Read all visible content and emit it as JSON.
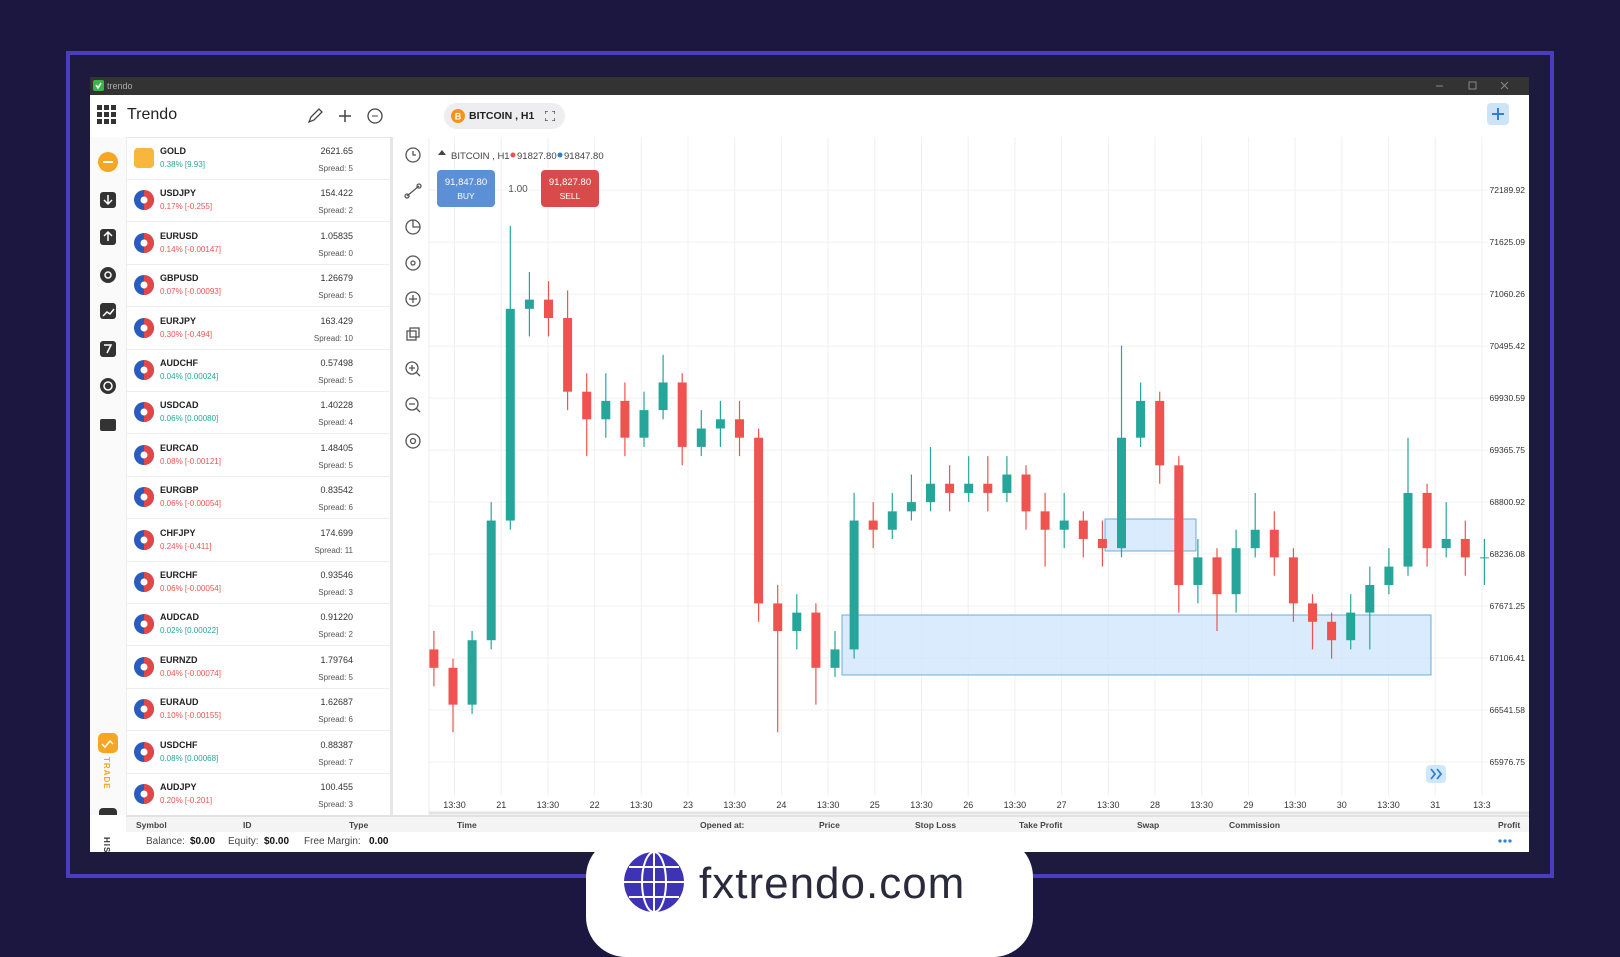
{
  "window": {
    "title": "trendo"
  },
  "header": {
    "app_name": "Trendo",
    "tab": "BITCOIN , H1"
  },
  "sidebar": {
    "trade": "TRADE",
    "history": "HISTORY"
  },
  "watchlist": [
    {
      "symbol": "GOLD",
      "price": "2621.65",
      "change": "0.38% [9.93]",
      "spread": "Spread: 5",
      "direction": "up"
    },
    {
      "symbol": "USDJPY",
      "price": "154.422",
      "change": "0.17% [-0.255]",
      "spread": "Spread: 2",
      "direction": "down"
    },
    {
      "symbol": "EURUSD",
      "price": "1.05835",
      "change": "0.14% [-0.00147]",
      "spread": "Spread: 0",
      "direction": "down"
    },
    {
      "symbol": "GBPUSD",
      "price": "1.26679",
      "change": "0.07% [-0.00093]",
      "spread": "Spread: 5",
      "direction": "down"
    },
    {
      "symbol": "EURJPY",
      "price": "163.429",
      "change": "0.30% [-0.494]",
      "spread": "Spread: 10",
      "direction": "down"
    },
    {
      "symbol": "AUDCHF",
      "price": "0.57498",
      "change": "0.04% [0.00024]",
      "spread": "Spread: 5",
      "direction": "up"
    },
    {
      "symbol": "USDCAD",
      "price": "1.40228",
      "change": "0.06% [0.00080]",
      "spread": "Spread: 4",
      "direction": "up"
    },
    {
      "symbol": "EURCAD",
      "price": "1.48405",
      "change": "0.08% [-0.00121]",
      "spread": "Spread: 5",
      "direction": "down"
    },
    {
      "symbol": "EURGBP",
      "price": "0.83542",
      "change": "0.06% [-0.00054]",
      "spread": "Spread: 6",
      "direction": "down"
    },
    {
      "symbol": "CHFJPY",
      "price": "174.699",
      "change": "0.24% [-0.411]",
      "spread": "Spread: 11",
      "direction": "down"
    },
    {
      "symbol": "EURCHF",
      "price": "0.93546",
      "change": "0.06% [-0.00054]",
      "spread": "Spread: 3",
      "direction": "down"
    },
    {
      "symbol": "AUDCAD",
      "price": "0.91220",
      "change": "0.02% [0.00022]",
      "spread": "Spread: 2",
      "direction": "up"
    },
    {
      "symbol": "EURNZD",
      "price": "1.79764",
      "change": "0.04% [-0.00074]",
      "spread": "Spread: 5",
      "direction": "down"
    },
    {
      "symbol": "EURAUD",
      "price": "1.62687",
      "change": "0.10% [-0.00155]",
      "spread": "Spread: 6",
      "direction": "down"
    },
    {
      "symbol": "USDCHF",
      "price": "0.88387",
      "change": "0.08% [0.00068]",
      "spread": "Spread: 7",
      "direction": "up"
    },
    {
      "symbol": "AUDJPY",
      "price": "100.455",
      "change": "0.20% [-0.201]",
      "spread": "Spread: 3",
      "direction": "down"
    }
  ],
  "chart_data": {
    "type": "candlestick",
    "title": "BITCOIN , H1",
    "bid": "91827.80",
    "ask": "91847.80",
    "buy_price": "91,847.80",
    "buy_label": "BUY",
    "lot": "1.00",
    "sell_price": "91,827.80",
    "sell_label": "SELL",
    "x_labels": [
      "13:30",
      "21",
      "13:30",
      "22",
      "13:30",
      "23",
      "13:30",
      "24",
      "13:30",
      "25",
      "13:30",
      "26",
      "13:30",
      "27",
      "13:30",
      "28",
      "13:30",
      "29",
      "13:30",
      "30",
      "13:30",
      "31",
      "13:3"
    ],
    "open": [
      67200,
      67000,
      66600,
      67300,
      68600,
      70900,
      71000,
      70800,
      70000,
      69700,
      69900,
      69500,
      69800,
      70100,
      69400,
      69600,
      69700,
      69500,
      67700,
      67400,
      67600,
      67000,
      67200,
      68600,
      68500,
      68700,
      68800,
      69000,
      68900,
      69000,
      68900,
      69100,
      68700,
      68500,
      68600,
      68400,
      68300,
      69500,
      69900,
      69200,
      67900,
      68200,
      67800,
      68300,
      68500,
      68200,
      67700,
      67500,
      67300,
      67600,
      67900,
      68100,
      68900,
      68300,
      68400,
      68200
    ],
    "high": [
      67400,
      67100,
      67400,
      68800,
      71800,
      71300,
      71200,
      71100,
      70200,
      70200,
      70100,
      70000,
      70400,
      70200,
      69800,
      69900,
      69900,
      69600,
      67900,
      67800,
      67700,
      67400,
      68900,
      68800,
      68900,
      69100,
      69400,
      69200,
      69300,
      69300,
      69300,
      69200,
      68900,
      68900,
      68700,
      68600,
      70500,
      70100,
      70000,
      69300,
      68400,
      68300,
      68500,
      68900,
      68700,
      68300,
      67800,
      67600,
      67800,
      68100,
      68300,
      69500,
      69000,
      68800,
      68600,
      68400
    ],
    "low": [
      66800,
      66300,
      66500,
      67200,
      68500,
      70600,
      70600,
      69800,
      69300,
      69500,
      69300,
      69400,
      69700,
      69200,
      69300,
      69400,
      69300,
      67500,
      66300,
      67200,
      66600,
      66900,
      67100,
      68300,
      68400,
      68600,
      68700,
      68700,
      68800,
      68700,
      68800,
      68500,
      68100,
      68300,
      68200,
      68100,
      68200,
      69400,
      69000,
      67600,
      67700,
      67400,
      67600,
      68200,
      68000,
      67500,
      67200,
      67100,
      67200,
      67200,
      67800,
      68000,
      68100,
      68200,
      68000,
      67900
    ],
    "close": [
      67000,
      66600,
      67300,
      68600,
      70900,
      71000,
      70800,
      70000,
      69700,
      69900,
      69500,
      69800,
      70100,
      69400,
      69600,
      69700,
      69500,
      67700,
      67400,
      67600,
      67000,
      67200,
      68600,
      68500,
      68700,
      68800,
      69000,
      68900,
      69000,
      68900,
      69100,
      68700,
      68500,
      68600,
      68400,
      68300,
      69500,
      69900,
      69200,
      67900,
      68200,
      67800,
      68300,
      68500,
      68200,
      67700,
      67500,
      67300,
      67600,
      67900,
      68100,
      68900,
      68300,
      68400,
      68200,
      68200
    ],
    "ylim": [
      65612,
      72745
    ],
    "yticks": [
      72189.92,
      71625.09,
      71060.26,
      70495.42,
      69930.59,
      69365.75,
      68800.92,
      68236.08,
      67671.25,
      67106.41,
      66541.58,
      65976.75
    ],
    "grid": true,
    "up_color": "#26a69a",
    "down_color": "#ef5350"
  },
  "positions_table": {
    "columns": [
      "Symbol",
      "ID",
      "Type",
      "Time",
      "Opened at:",
      "Price",
      "Stop Loss",
      "Take Profit",
      "Swap",
      "Commission",
      "Profit"
    ]
  },
  "account": {
    "balance_label": "Balance:",
    "balance": "$0.00",
    "equity_label": "Equity:",
    "equity": "$0.00",
    "free_margin_label": "Free Margin:",
    "free_margin": "0.00"
  },
  "brand": {
    "text": "fxtrendo.com"
  }
}
